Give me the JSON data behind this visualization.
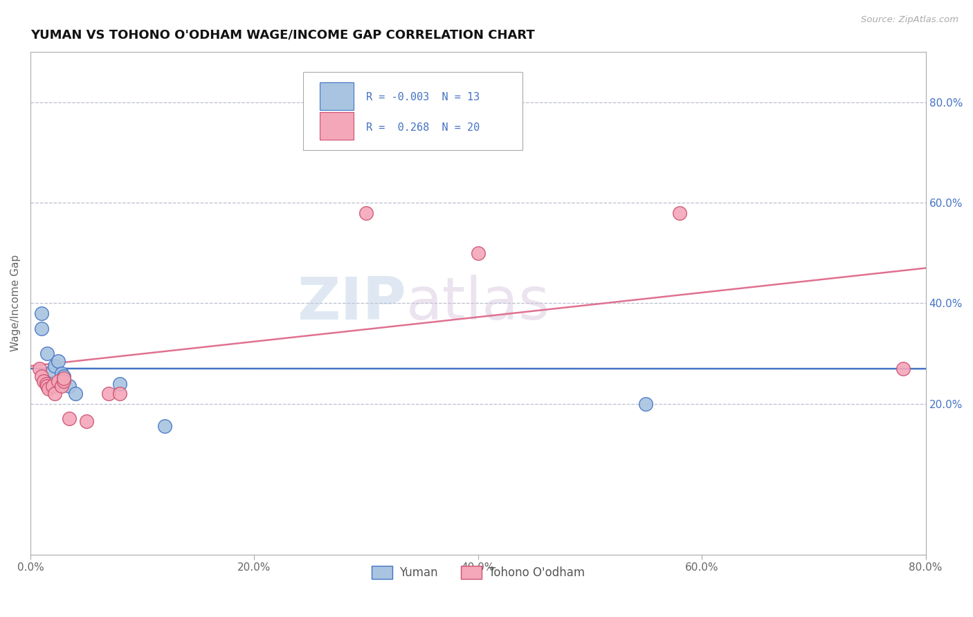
{
  "title": "YUMAN VS TOHONO O'ODHAM WAGE/INCOME GAP CORRELATION CHART",
  "source_text": "Source: ZipAtlas.com",
  "ylabel": "Wage/Income Gap",
  "xlabel": "",
  "xlim": [
    0.0,
    0.8
  ],
  "ylim": [
    -0.1,
    0.9
  ],
  "yuman_x": [
    0.01,
    0.01,
    0.015,
    0.02,
    0.022,
    0.025,
    0.028,
    0.03,
    0.035,
    0.04,
    0.08,
    0.12,
    0.55
  ],
  "yuman_y": [
    0.38,
    0.35,
    0.3,
    0.265,
    0.275,
    0.285,
    0.26,
    0.255,
    0.235,
    0.22,
    0.24,
    0.155,
    0.2
  ],
  "tohono_x": [
    0.008,
    0.01,
    0.012,
    0.014,
    0.015,
    0.016,
    0.02,
    0.022,
    0.025,
    0.028,
    0.03,
    0.03,
    0.035,
    0.05,
    0.07,
    0.08,
    0.3,
    0.4,
    0.58,
    0.78
  ],
  "tohono_y": [
    0.27,
    0.255,
    0.245,
    0.24,
    0.235,
    0.23,
    0.235,
    0.22,
    0.245,
    0.235,
    0.245,
    0.25,
    0.17,
    0.165,
    0.22,
    0.22,
    0.58,
    0.5,
    0.58,
    0.27
  ],
  "yuman_R": -0.003,
  "yuman_N": 13,
  "tohono_R": 0.268,
  "tohono_N": 20,
  "yuman_color": "#a8c4e0",
  "tohono_color": "#f4a7b9",
  "yuman_line_color": "#4472c4",
  "tohono_line_color": "#e07090",
  "tohono_edge_color": "#cc5070",
  "background_color": "#ffffff",
  "grid_color": "#b8bfcc",
  "right_ytick_labels": [
    "80.0%",
    "60.0%",
    "40.0%",
    "20.0%"
  ],
  "right_ytick_values": [
    0.8,
    0.6,
    0.4,
    0.2
  ],
  "xtick_labels": [
    "0.0%",
    "20.0%",
    "40.0%",
    "60.0%",
    "80.0%"
  ],
  "xtick_values": [
    0.0,
    0.2,
    0.4,
    0.6,
    0.8
  ],
  "watermark_text_zip": "ZIP",
  "watermark_text_atlas": "atlas",
  "legend_color": "#4472c4"
}
